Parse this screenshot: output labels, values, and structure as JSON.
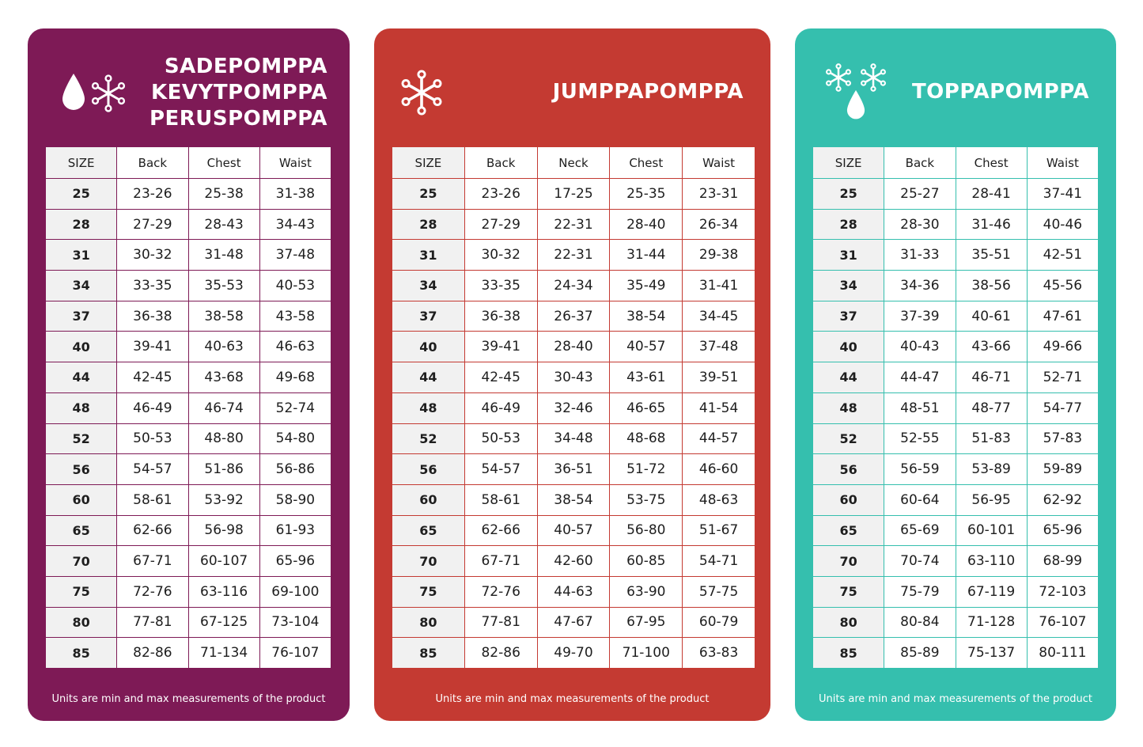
{
  "note": "Units are min and max measurements of the product",
  "colors": {
    "card1": "#7e1a56",
    "card2": "#c43a32",
    "card3": "#35bfae"
  },
  "cards": [
    {
      "title_lines": [
        "SADEPOMPPA",
        "KEVYTPOMPPA",
        "PERUSPOMPPA"
      ],
      "icons": [
        "raindrop-icon",
        "snowflake-icon"
      ],
      "columns": [
        "SIZE",
        "Back",
        "Chest",
        "Waist"
      ],
      "rows": [
        [
          "25",
          "23-26",
          "25-38",
          "31-38"
        ],
        [
          "28",
          "27-29",
          "28-43",
          "34-43"
        ],
        [
          "31",
          "30-32",
          "31-48",
          "37-48"
        ],
        [
          "34",
          "33-35",
          "35-53",
          "40-53"
        ],
        [
          "37",
          "36-38",
          "38-58",
          "43-58"
        ],
        [
          "40",
          "39-41",
          "40-63",
          "46-63"
        ],
        [
          "44",
          "42-45",
          "43-68",
          "49-68"
        ],
        [
          "48",
          "46-49",
          "46-74",
          "52-74"
        ],
        [
          "52",
          "50-53",
          "48-80",
          "54-80"
        ],
        [
          "56",
          "54-57",
          "51-86",
          "56-86"
        ],
        [
          "60",
          "58-61",
          "53-92",
          "58-90"
        ],
        [
          "65",
          "62-66",
          "56-98",
          "61-93"
        ],
        [
          "70",
          "67-71",
          "60-107",
          "65-96"
        ],
        [
          "75",
          "72-76",
          "63-116",
          "69-100"
        ],
        [
          "80",
          "77-81",
          "67-125",
          "73-104"
        ],
        [
          "85",
          "82-86",
          "71-134",
          "76-107"
        ]
      ]
    },
    {
      "title_lines": [
        "JUMPPAPOMPPA"
      ],
      "icons": [
        "snowflake-icon"
      ],
      "columns": [
        "SIZE",
        "Back",
        "Neck",
        "Chest",
        "Waist"
      ],
      "rows": [
        [
          "25",
          "23-26",
          "17-25",
          "25-35",
          "23-31"
        ],
        [
          "28",
          "27-29",
          "22-31",
          "28-40",
          "26-34"
        ],
        [
          "31",
          "30-32",
          "22-31",
          "31-44",
          "29-38"
        ],
        [
          "34",
          "33-35",
          "24-34",
          "35-49",
          "31-41"
        ],
        [
          "37",
          "36-38",
          "26-37",
          "38-54",
          "34-45"
        ],
        [
          "40",
          "39-41",
          "28-40",
          "40-57",
          "37-48"
        ],
        [
          "44",
          "42-45",
          "30-43",
          "43-61",
          "39-51"
        ],
        [
          "48",
          "46-49",
          "32-46",
          "46-65",
          "41-54"
        ],
        [
          "52",
          "50-53",
          "34-48",
          "48-68",
          "44-57"
        ],
        [
          "56",
          "54-57",
          "36-51",
          "51-72",
          "46-60"
        ],
        [
          "60",
          "58-61",
          "38-54",
          "53-75",
          "48-63"
        ],
        [
          "65",
          "62-66",
          "40-57",
          "56-80",
          "51-67"
        ],
        [
          "70",
          "67-71",
          "42-60",
          "60-85",
          "54-71"
        ],
        [
          "75",
          "72-76",
          "44-63",
          "63-90",
          "57-75"
        ],
        [
          "80",
          "77-81",
          "47-67",
          "67-95",
          "60-79"
        ],
        [
          "85",
          "82-86",
          "49-70",
          "71-100",
          "63-83"
        ]
      ]
    },
    {
      "title_lines": [
        "TOPPAPOMPPA"
      ],
      "icons": [
        "snowflake-icon",
        "snowflake-icon",
        "raindrop-icon"
      ],
      "columns": [
        "SIZE",
        "Back",
        "Chest",
        "Waist"
      ],
      "rows": [
        [
          "25",
          "25-27",
          "28-41",
          "37-41"
        ],
        [
          "28",
          "28-30",
          "31-46",
          "40-46"
        ],
        [
          "31",
          "31-33",
          "35-51",
          "42-51"
        ],
        [
          "34",
          "34-36",
          "38-56",
          "45-56"
        ],
        [
          "37",
          "37-39",
          "40-61",
          "47-61"
        ],
        [
          "40",
          "40-43",
          "43-66",
          "49-66"
        ],
        [
          "44",
          "44-47",
          "46-71",
          "52-71"
        ],
        [
          "48",
          "48-51",
          "48-77",
          "54-77"
        ],
        [
          "52",
          "52-55",
          "51-83",
          "57-83"
        ],
        [
          "56",
          "56-59",
          "53-89",
          "59-89"
        ],
        [
          "60",
          "60-64",
          "56-95",
          "62-92"
        ],
        [
          "65",
          "65-69",
          "60-101",
          "65-96"
        ],
        [
          "70",
          "70-74",
          "63-110",
          "68-99"
        ],
        [
          "75",
          "75-79",
          "67-119",
          "72-103"
        ],
        [
          "80",
          "80-84",
          "71-128",
          "76-107"
        ],
        [
          "85",
          "85-89",
          "75-137",
          "80-111"
        ]
      ]
    }
  ]
}
